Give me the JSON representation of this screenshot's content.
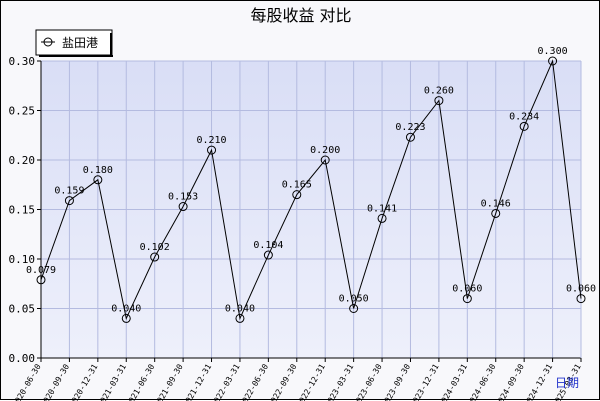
{
  "chart_data": {
    "type": "line",
    "title": "每股收益  对比",
    "legend": {
      "placement": "top-left",
      "entries": [
        "盐田港"
      ]
    },
    "xlabel": "",
    "x_axis_unit_label": "日期",
    "ylabel": "",
    "ylim": [
      0,
      0.3
    ],
    "y_ticks": [
      "0.00",
      "0.05",
      "0.10",
      "0.15",
      "0.20",
      "0.25",
      "0.30"
    ],
    "grid": true,
    "categories": [
      "2020-06-30",
      "2020-09-30",
      "2020-12-31",
      "2021-03-31",
      "2021-06-30",
      "2021-09-30",
      "2021-12-31",
      "2022-03-31",
      "2022-06-30",
      "2022-09-30",
      "2022-12-31",
      "2023-03-31",
      "2023-06-30",
      "2023-09-30",
      "2023-12-31",
      "2024-03-31",
      "2024-06-30",
      "2024-09-30",
      "2024-12-31",
      "2025-03-31"
    ],
    "series": [
      {
        "name": "盐田港",
        "values": [
          0.079,
          0.159,
          0.18,
          0.04,
          0.102,
          0.153,
          0.21,
          0.04,
          0.104,
          0.165,
          0.2,
          0.05,
          0.141,
          0.223,
          0.26,
          0.06,
          0.146,
          0.234,
          0.3,
          0.06
        ],
        "labels": [
          "0.079",
          "0.159",
          "0.180",
          "0.040",
          "0.102",
          "0.153",
          "0.210",
          "0.040",
          "0.104",
          "0.165",
          "0.200",
          "0.050",
          "0.141",
          "0.223",
          "0.260",
          "0.060",
          "0.146",
          "0.234",
          "0.300",
          "0.060"
        ]
      }
    ],
    "colors": {
      "plot_bg": "#dde1f7",
      "grid": "#b4bbe0",
      "line": "#000000",
      "text": "#000000"
    }
  }
}
